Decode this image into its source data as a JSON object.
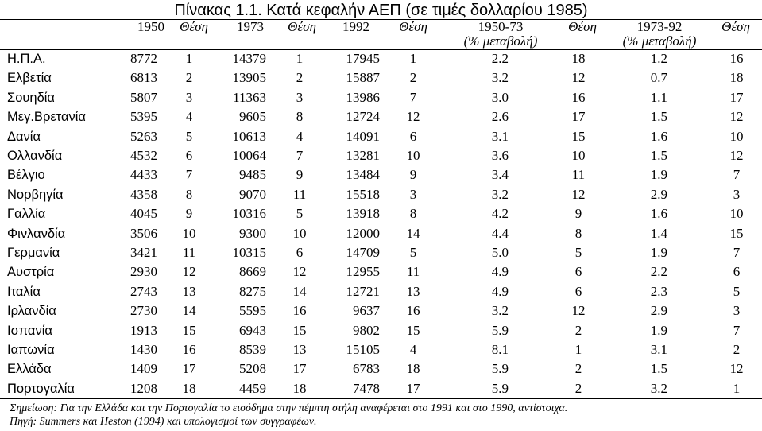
{
  "title": "Πίνακας 1.1. Κατά κεφαλήν ΑΕΠ (σε τιμές δολλαρίου 1985)",
  "headers": {
    "c1950": "1950",
    "thesi1": "Θέση",
    "c1973": "1973",
    "thesi2": "Θέση",
    "c1992": "1992",
    "thesi3": "Θέση",
    "c5073": "1950-73",
    "c5073_sub": "(% μεταβολή)",
    "thesi4": "Θέση",
    "c7392": "1973-92",
    "c7392_sub": "(% μεταβολή)",
    "thesi5": "Θέση"
  },
  "rows": [
    {
      "country": "Η.Π.Α.",
      "v1950": "8772",
      "r1": "1",
      "v1973": "14379",
      "r2": "1",
      "v1992": "17945",
      "r3": "1",
      "g1": "2.2",
      "r4": "18",
      "g2": "1.2",
      "r5": "16"
    },
    {
      "country": "Ελβετία",
      "v1950": "6813",
      "r1": "2",
      "v1973": "13905",
      "r2": "2",
      "v1992": "15887",
      "r3": "2",
      "g1": "3.2",
      "r4": "12",
      "g2": "0.7",
      "r5": "18"
    },
    {
      "country": "Σουηδία",
      "v1950": "5807",
      "r1": "3",
      "v1973": "11363",
      "r2": "3",
      "v1992": "13986",
      "r3": "7",
      "g1": "3.0",
      "r4": "16",
      "g2": "1.1",
      "r5": "17"
    },
    {
      "country": "Μεγ.Βρετανία",
      "v1950": "5395",
      "r1": "4",
      "v1973": "9605",
      "r2": "8",
      "v1992": "12724",
      "r3": "12",
      "g1": "2.6",
      "r4": "17",
      "g2": "1.5",
      "r5": "12"
    },
    {
      "country": "Δανία",
      "v1950": "5263",
      "r1": "5",
      "v1973": "10613",
      "r2": "4",
      "v1992": "14091",
      "r3": "6",
      "g1": "3.1",
      "r4": "15",
      "g2": "1.6",
      "r5": "10"
    },
    {
      "country": "Ολλανδία",
      "v1950": "4532",
      "r1": "6",
      "v1973": "10064",
      "r2": "7",
      "v1992": "13281",
      "r3": "10",
      "g1": "3.6",
      "r4": "10",
      "g2": "1.5",
      "r5": "12"
    },
    {
      "country": "Βέλγιο",
      "v1950": "4433",
      "r1": "7",
      "v1973": "9485",
      "r2": "9",
      "v1992": "13484",
      "r3": "9",
      "g1": "3.4",
      "r4": "11",
      "g2": "1.9",
      "r5": "7"
    },
    {
      "country": "Νορβηγία",
      "v1950": "4358",
      "r1": "8",
      "v1973": "9070",
      "r2": "11",
      "v1992": "15518",
      "r3": "3",
      "g1": "3.2",
      "r4": "12",
      "g2": "2.9",
      "r5": "3"
    },
    {
      "country": "Γαλλία",
      "v1950": "4045",
      "r1": "9",
      "v1973": "10316",
      "r2": "5",
      "v1992": "13918",
      "r3": "8",
      "g1": "4.2",
      "r4": "9",
      "g2": "1.6",
      "r5": "10"
    },
    {
      "country": "Φινλανδία",
      "v1950": "3506",
      "r1": "10",
      "v1973": "9300",
      "r2": "10",
      "v1992": "12000",
      "r3": "14",
      "g1": "4.4",
      "r4": "8",
      "g2": "1.4",
      "r5": "15"
    },
    {
      "country": "Γερμανία",
      "v1950": "3421",
      "r1": "11",
      "v1973": "10315",
      "r2": "6",
      "v1992": "14709",
      "r3": "5",
      "g1": "5.0",
      "r4": "5",
      "g2": "1.9",
      "r5": "7"
    },
    {
      "country": "Αυστρία",
      "v1950": "2930",
      "r1": "12",
      "v1973": "8669",
      "r2": "12",
      "v1992": "12955",
      "r3": "11",
      "g1": "4.9",
      "r4": "6",
      "g2": "2.2",
      "r5": "6"
    },
    {
      "country": "Ιταλία",
      "v1950": "2743",
      "r1": "13",
      "v1973": "8275",
      "r2": "14",
      "v1992": "12721",
      "r3": "13",
      "g1": "4.9",
      "r4": "6",
      "g2": "2.3",
      "r5": "5"
    },
    {
      "country": "Ιρλανδία",
      "v1950": "2730",
      "r1": "14",
      "v1973": "5595",
      "r2": "16",
      "v1992": "9637",
      "r3": "16",
      "g1": "3.2",
      "r4": "12",
      "g2": "2.9",
      "r5": "3"
    },
    {
      "country": "Ισπανία",
      "v1950": "1913",
      "r1": "15",
      "v1973": "6943",
      "r2": "15",
      "v1992": "9802",
      "r3": "15",
      "g1": "5.9",
      "r4": "2",
      "g2": "1.9",
      "r5": "7"
    },
    {
      "country": "Ιαπωνία",
      "v1950": "1430",
      "r1": "16",
      "v1973": "8539",
      "r2": "13",
      "v1992": "15105",
      "r3": "4",
      "g1": "8.1",
      "r4": "1",
      "g2": "3.1",
      "r5": "2"
    },
    {
      "country": "Ελλάδα",
      "v1950": "1409",
      "r1": "17",
      "v1973": "5208",
      "r2": "17",
      "v1992": "6783",
      "r3": "18",
      "g1": "5.9",
      "r4": "2",
      "g2": "1.5",
      "r5": "12"
    },
    {
      "country": "Πορτογαλία",
      "v1950": "1208",
      "r1": "18",
      "v1973": "4459",
      "r2": "18",
      "v1992": "7478",
      "r3": "17",
      "g1": "5.9",
      "r4": "2",
      "g2": "3.2",
      "r5": "1"
    }
  ],
  "notes": {
    "remark": "Σημείωση: Για την Ελλάδα και την Πορτογαλία το εισόδημα στην πέμπτη στήλη αναφέρεται στο 1991 και στο 1990, αντίστοιχα.",
    "source": "Πηγή: Summers και Heston (1994) και υπολογισμοί των συγγραφέων."
  }
}
